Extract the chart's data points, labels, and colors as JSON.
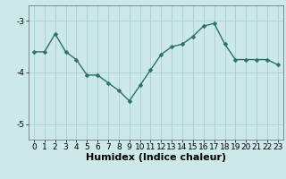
{
  "x": [
    0,
    1,
    2,
    3,
    4,
    5,
    6,
    7,
    8,
    9,
    10,
    11,
    12,
    13,
    14,
    15,
    16,
    17,
    18,
    19,
    20,
    21,
    22,
    23
  ],
  "y": [
    -3.6,
    -3.6,
    -3.25,
    -3.6,
    -3.75,
    -4.05,
    -4.05,
    -4.2,
    -4.35,
    -4.55,
    -4.25,
    -3.95,
    -3.65,
    -3.5,
    -3.45,
    -3.3,
    -3.1,
    -3.05,
    -3.45,
    -3.75,
    -3.75,
    -3.75,
    -3.75,
    -3.85
  ],
  "line_color": "#2a7070",
  "marker": "D",
  "marker_size": 2.5,
  "background_color": "#cce8e8",
  "grid_color": "#aad0d0",
  "xlabel": "Humidex (Indice chaleur)",
  "ylim": [
    -5.3,
    -2.7
  ],
  "xlim": [
    -0.5,
    23.5
  ],
  "yticks": [
    -5,
    -4,
    -3
  ],
  "ytick_labels": [
    "-5",
    "-4",
    "-3"
  ],
  "xticks": [
    0,
    1,
    2,
    3,
    4,
    5,
    6,
    7,
    8,
    9,
    10,
    11,
    12,
    13,
    14,
    15,
    16,
    17,
    18,
    19,
    20,
    21,
    22,
    23
  ],
  "tick_fontsize": 6.5,
  "xlabel_fontsize": 8,
  "line_width": 1.0,
  "fig_width": 3.2,
  "fig_height": 2.0,
  "dpi": 100
}
